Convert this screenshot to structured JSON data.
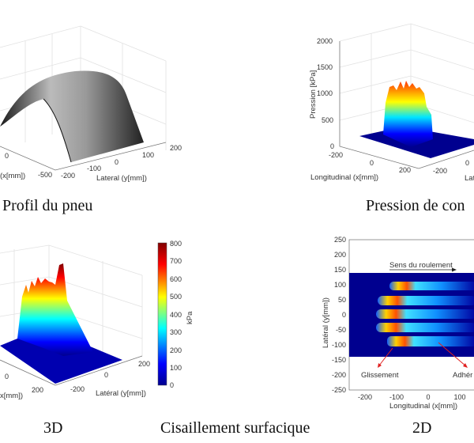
{
  "captions": {
    "tire_profile": "Profil du pneu",
    "contact_pressure": "Pression de con",
    "shear_3d": "3D",
    "shear_title": "Cisaillement surfacique",
    "shear_2d": "2D"
  },
  "colors": {
    "jet": [
      "#00008f",
      "#0000ff",
      "#00ffff",
      "#ffff00",
      "#ff0000",
      "#800000"
    ]
  },
  "chart_data": [
    {
      "type": "surface",
      "title": "Profil du pneu",
      "xlabel": "(x[mm])",
      "ylabel": "Lateral (y[mm])",
      "xticks": [
        "0",
        "-500"
      ],
      "yticks": [
        "-200",
        "-100",
        "0",
        "100",
        "200"
      ]
    },
    {
      "type": "surface",
      "title": "Pression de con",
      "xlabel": "Longitudinal (x[mm])",
      "ylabel": "Lat",
      "zlabel": "Pression [kPa]",
      "xticks": [
        "-200",
        "0",
        "200"
      ],
      "yticks": [
        "-200",
        "0"
      ],
      "zticks": [
        "2000",
        "1500",
        "1000",
        "500",
        "0"
      ],
      "zlim": [
        0,
        2000
      ],
      "peak_approx": 1250
    },
    {
      "type": "surface",
      "title": "3D",
      "xlabel": "x[mm])",
      "ylabel": "Latéral (y[mm])",
      "xticks": [
        "0",
        "200"
      ],
      "yticks": [
        "-200",
        "0",
        "200"
      ],
      "colorbar": {
        "label": "kPa",
        "ticks": [
          "800",
          "700",
          "600",
          "500",
          "400",
          "300",
          "200",
          "100",
          "0"
        ],
        "range": [
          0,
          800
        ]
      },
      "peak_approx": 780
    },
    {
      "type": "heatmap",
      "title": "2D",
      "xlabel": "Longitudinal (x[mm])",
      "ylabel": "Latéral (y[mm])",
      "xticks": [
        "-200",
        "-100",
        "0",
        "100"
      ],
      "yticks": [
        "250",
        "200",
        "150",
        "100",
        "50",
        "0",
        "-50",
        "-100",
        "-150",
        "-200",
        "-250"
      ],
      "ylim": [
        -250,
        250
      ],
      "contact_band_y": [
        -138,
        138
      ],
      "ribs_y": [
        95,
        45,
        0,
        -45,
        -92
      ],
      "annotations": {
        "direction": "Sens du roulement",
        "slip": "Glissement",
        "adhesion": "Adhér"
      }
    }
  ]
}
